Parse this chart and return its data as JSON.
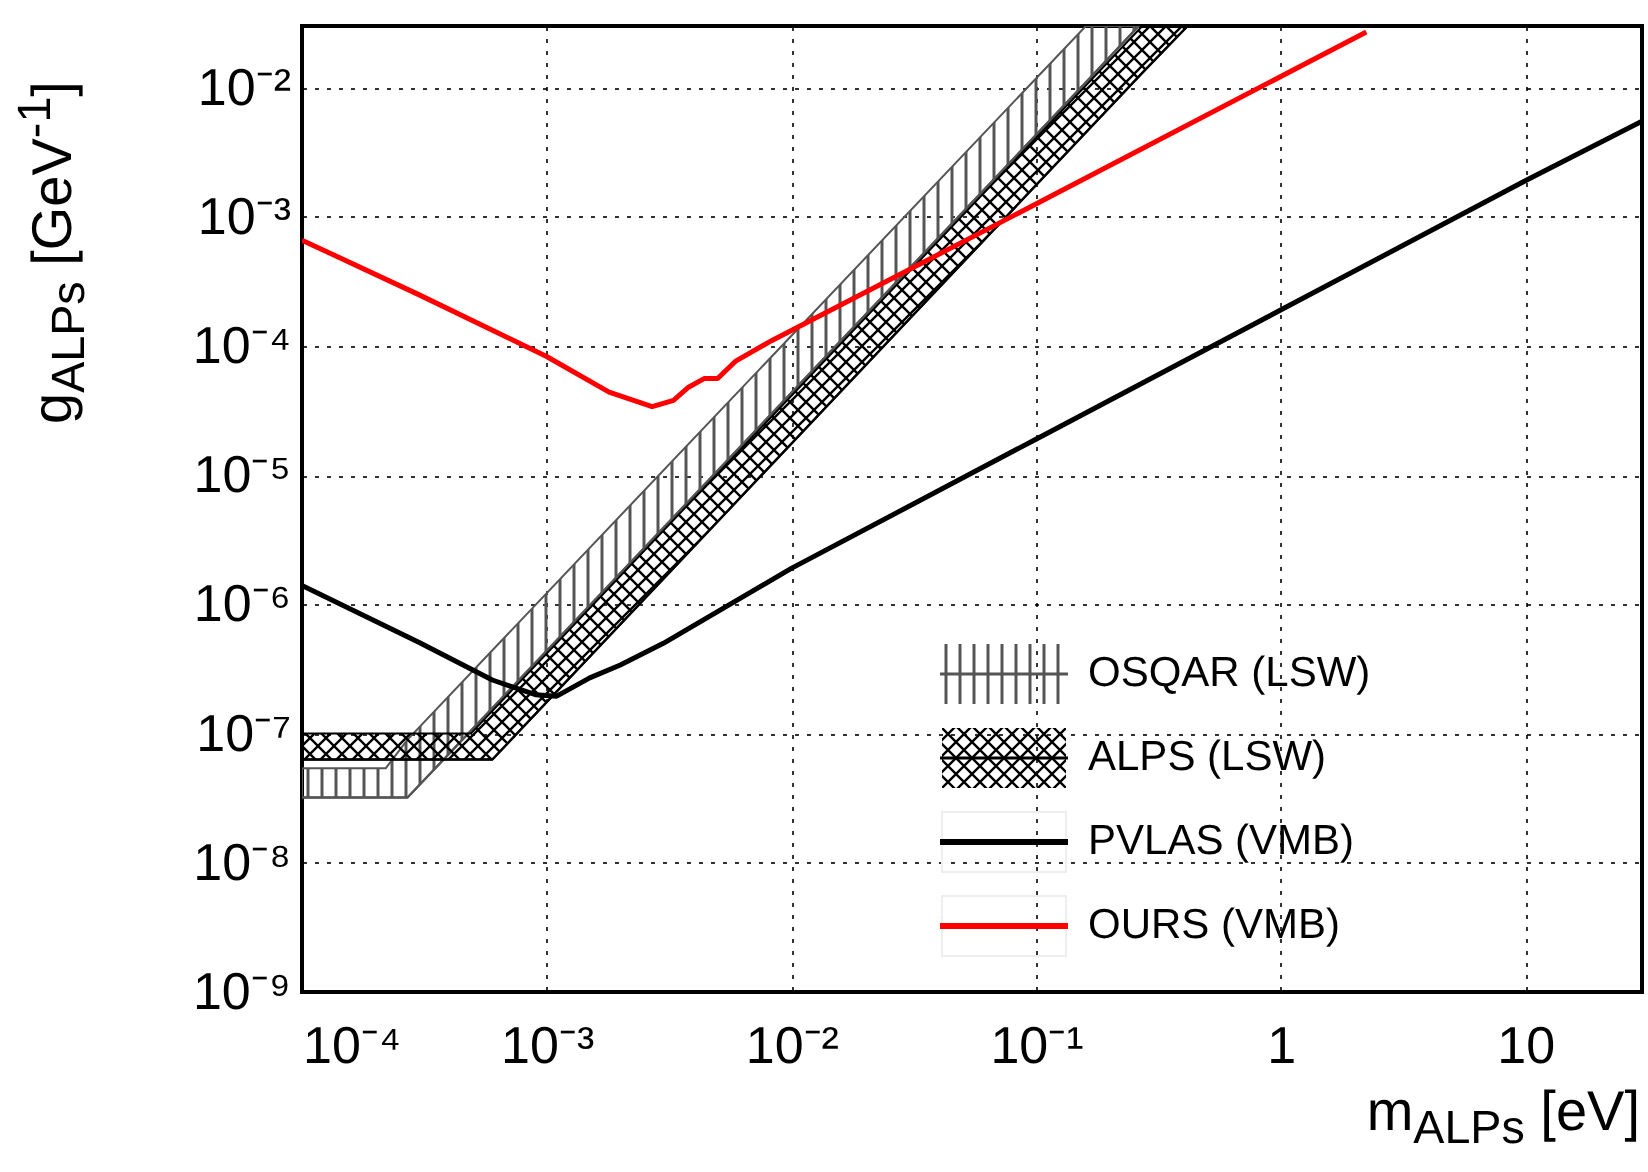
{
  "chart_data": {
    "type": "line",
    "xlabel": "m$_{ALPs}$ [eV]",
    "ylabel": "g$_{ALPs}$ [GeV$^{-1}$]",
    "log": "xy",
    "grid": true,
    "legend": "bottom right",
    "xlim": [
      0.0001,
      30
    ],
    "ylim": [
      1e-09,
      0.03
    ],
    "xticks": [
      {
        "value": 0.0001,
        "label": "10⁻⁴"
      },
      {
        "value": 0.001,
        "label": "10⁻³"
      },
      {
        "value": 0.01,
        "label": "10⁻²"
      },
      {
        "value": 0.1,
        "label": "10⁻¹"
      },
      1,
      10
    ],
    "yticks": [
      {
        "value": 1e-09,
        "label": "10⁻⁹"
      },
      {
        "value": 1e-08,
        "label": "10⁻⁸"
      },
      {
        "value": 1e-07,
        "label": "10⁻⁷"
      },
      {
        "value": 1e-06,
        "label": "10⁻⁶"
      },
      {
        "value": 1e-05,
        "label": "10⁻⁵"
      },
      {
        "value": 0.0001,
        "label": "10⁻⁴"
      },
      {
        "value": 0.001,
        "label": "10⁻³"
      },
      {
        "value": 0.01,
        "label": "10⁻²"
      }
    ],
    "series": [
      {
        "name": "OSQAR (LSW)",
        "color": "#555555",
        "x": [
          0.0001,
          0.00022,
          0.00027,
          0.16,
          0.263
        ],
        "values": [
          3.2e-08,
          3.2e-08,
          3.2e-08,
          0.011,
          0.03
        ],
        "lower": [
          3.2e-08,
          3.2e-08,
          3.2e-08,
          0.011,
          0.03
        ],
        "upper": [
          5.4e-08,
          5.4e-08,
          9e-08,
          0.03,
          0.03
        ]
      },
      {
        "name": "ALPS (LSW)",
        "color": "#000000",
        "x": [
          0.0001,
          0.00049,
          0.0006,
          0.272,
          0.417
        ],
        "values": [
          6.3e-08,
          6.3e-08,
          6.3e-08,
          0.013,
          0.03
        ],
        "lower": [
          6.3e-08,
          6.3e-08,
          6.3e-08,
          0.013,
          0.03
        ],
        "upper": [
          1e-07,
          1e-07,
          1.5e-07,
          0.03,
          0.03
        ]
      },
      {
        "name": "PVLAS (VMB)",
        "color": "#000000",
        "x": [
          0.0001,
          0.0003,
          0.0006,
          0.0009,
          0.0011,
          0.0015,
          0.002,
          0.003,
          0.01,
          0.1,
          1,
          10,
          30
        ],
        "values": [
          1.4e-06,
          5.1e-07,
          2.6e-07,
          2e-07,
          1.95e-07,
          2.7e-07,
          3.4e-07,
          5e-07,
          1.9e-06,
          1.9e-05,
          0.00019,
          0.0019,
          0.0055
        ]
      },
      {
        "name": "OURS (VMB)",
        "color": "#ff0000",
        "x": [
          0.0001,
          0.0003,
          0.001,
          0.0018,
          0.0027,
          0.0033,
          0.0038,
          0.0044,
          0.005,
          0.0059,
          0.0083,
          0.072,
          2.24
        ],
        "values": [
          0.00066,
          0.00025,
          8.3e-05,
          4.4e-05,
          3.4e-05,
          3.8e-05,
          4.8e-05,
          5.6e-05,
          5.6e-05,
          7.6e-05,
          0.00011,
          0.00091,
          0.027
        ]
      }
    ]
  }
}
